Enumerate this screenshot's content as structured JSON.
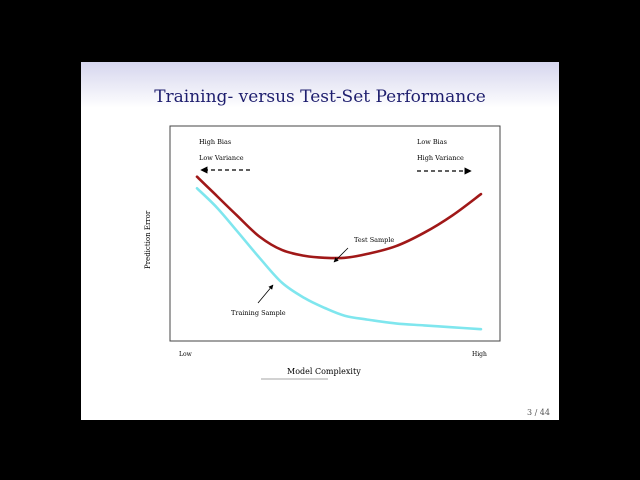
{
  "slide": {
    "title": "Training- versus Test-Set Performance",
    "page_number": "3 / 44"
  },
  "chart_data": {
    "type": "line",
    "title": "",
    "xlabel": "Model Complexity",
    "ylabel": "Prediction Error",
    "x_tick_labels": [
      "Low",
      "High"
    ],
    "annotations": {
      "left_top": "High Bias",
      "left_bottom": "Low Variance",
      "right_top": "Low Bias",
      "right_bottom": "High Variance",
      "test_label": "Test Sample",
      "train_label": "Training Sample"
    },
    "xlim": [
      0,
      1
    ],
    "ylim": [
      0,
      1
    ],
    "series": [
      {
        "name": "Test Sample",
        "color": "#a01818",
        "x": [
          0.0,
          0.07,
          0.14,
          0.22,
          0.3,
          0.38,
          0.45,
          0.52,
          0.6,
          0.7,
          0.8,
          0.9,
          1.0
        ],
        "y": [
          0.82,
          0.72,
          0.62,
          0.51,
          0.44,
          0.41,
          0.4,
          0.4,
          0.42,
          0.46,
          0.53,
          0.62,
          0.73
        ]
      },
      {
        "name": "Training Sample",
        "color": "#7fe6ee",
        "x": [
          0.0,
          0.07,
          0.14,
          0.22,
          0.3,
          0.38,
          0.45,
          0.52,
          0.6,
          0.7,
          0.8,
          0.9,
          1.0
        ],
        "y": [
          0.76,
          0.66,
          0.54,
          0.4,
          0.27,
          0.19,
          0.14,
          0.1,
          0.08,
          0.06,
          0.05,
          0.04,
          0.03
        ]
      }
    ]
  }
}
